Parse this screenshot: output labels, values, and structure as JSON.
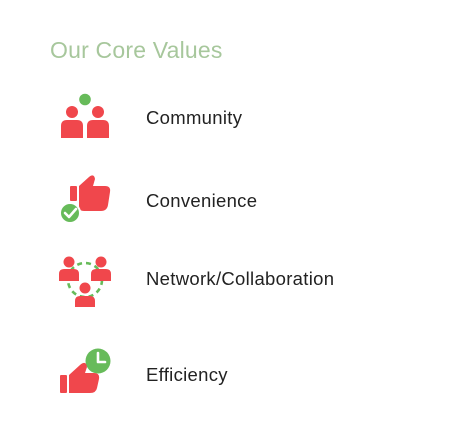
{
  "section": {
    "title": "Our Core Values"
  },
  "colors": {
    "title": "#a7c79c",
    "icon_red": "#f0474c",
    "icon_green": "#67bb5a",
    "text": "#222222"
  },
  "values": [
    {
      "label": "Community",
      "icon": "community-people-icon"
    },
    {
      "label": "Convenience",
      "icon": "thumbs-up-check-icon"
    },
    {
      "label": "Network/Collaboration",
      "icon": "network-people-icon"
    },
    {
      "label": "Efficiency",
      "icon": "thumbs-up-clock-icon"
    }
  ]
}
